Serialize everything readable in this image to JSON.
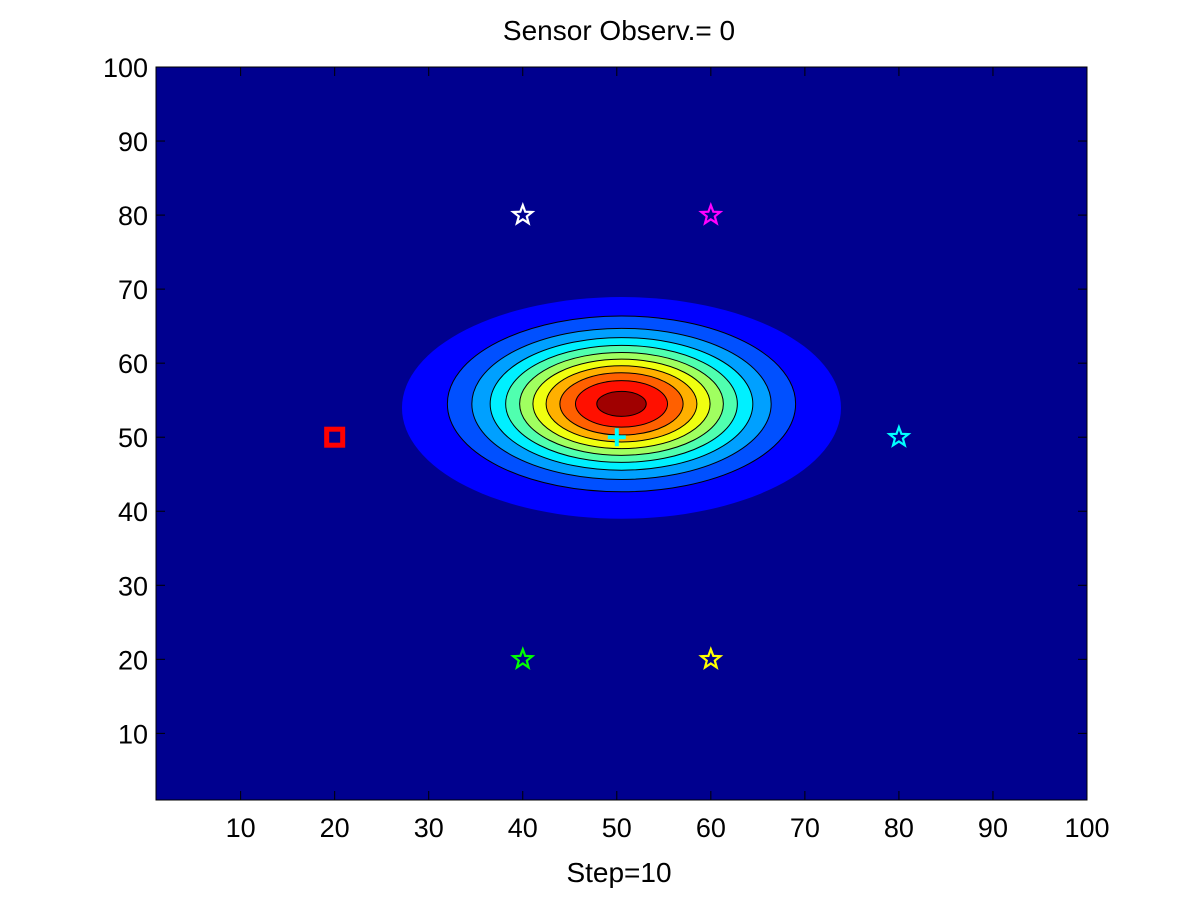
{
  "chart_data": {
    "type": "contour",
    "title": "Sensor  Observ.= 0",
    "xlabel": "Step=10",
    "ylabel": "",
    "xlim": [
      1,
      100
    ],
    "ylim": [
      1,
      100
    ],
    "xticks": [
      "10",
      "20",
      "30",
      "40",
      "50",
      "60",
      "70",
      "80",
      "90",
      "100"
    ],
    "yticks": [
      "10",
      "20",
      "30",
      "40",
      "50",
      "60",
      "70",
      "80",
      "90",
      "100"
    ],
    "grid": false,
    "background_color": "#00008f",
    "contour": {
      "center": [
        50.5,
        54.5
      ],
      "spread": [
        9.2,
        5.9
      ],
      "levels": 10,
      "colormap": [
        "#0000ff",
        "#0050ff",
        "#00a0ff",
        "#00f0ff",
        "#50ffaf",
        "#a0ff60",
        "#f0ff10",
        "#ffb000",
        "#ff6000",
        "#ff1000",
        "#a00000"
      ]
    },
    "markers": [
      {
        "symbol": "square",
        "x": 20,
        "y": 50,
        "color": "#ff0000"
      },
      {
        "symbol": "star",
        "x": 40,
        "y": 80,
        "color": "#ffffff"
      },
      {
        "symbol": "star",
        "x": 60,
        "y": 80,
        "color": "#ff00ff"
      },
      {
        "symbol": "star",
        "x": 80,
        "y": 50,
        "color": "#00ffff"
      },
      {
        "symbol": "star",
        "x": 40,
        "y": 20,
        "color": "#00ff00"
      },
      {
        "symbol": "star",
        "x": 60,
        "y": 20,
        "color": "#ffff00"
      },
      {
        "symbol": "plus",
        "x": 50,
        "y": 50,
        "color": "#00ffff"
      }
    ]
  }
}
